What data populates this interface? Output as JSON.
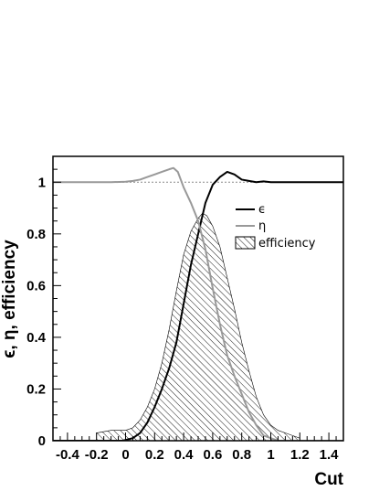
{
  "chart_data": {
    "type": "line",
    "title": "",
    "xlabel": "Cut",
    "ylabel": "ϵ, η, efficiency",
    "xlim": [
      -0.5,
      1.5
    ],
    "ylim": [
      0,
      1.1
    ],
    "x_ticks": [
      -0.4,
      -0.2,
      0,
      0.2,
      0.4,
      0.6,
      0.8,
      1,
      1.2,
      1.4
    ],
    "x_tick_labels": [
      "-0.4",
      "-0.2",
      "0",
      "0.2",
      "0.4",
      "0.6",
      "0.8",
      "1",
      "1.2",
      "1.4"
    ],
    "y_ticks": [
      0,
      0.2,
      0.4,
      0.6,
      0.8,
      1
    ],
    "y_tick_labels": [
      "0",
      "0.2",
      "0.4",
      "0.6",
      "0.8",
      "1"
    ],
    "reference_line": {
      "y": 1.0,
      "style": "dotted",
      "color": "#888888"
    },
    "legend_position": "upper-right",
    "series": [
      {
        "name": "ϵ",
        "kind": "line",
        "color": "#000000",
        "x": [
          -0.5,
          -0.02,
          0.05,
          0.1,
          0.15,
          0.2,
          0.25,
          0.3,
          0.35,
          0.4,
          0.45,
          0.5,
          0.55,
          0.6,
          0.65,
          0.7,
          0.75,
          0.8,
          0.85,
          0.9,
          0.95,
          1.0,
          1.05,
          1.5
        ],
        "y": [
          0,
          0,
          0.01,
          0.03,
          0.07,
          0.13,
          0.2,
          0.28,
          0.38,
          0.53,
          0.68,
          0.8,
          0.92,
          0.99,
          1.02,
          1.04,
          1.03,
          1.01,
          1.005,
          1.0,
          1.003,
          1.0,
          1.0,
          1.0
        ]
      },
      {
        "name": "η",
        "kind": "line",
        "color": "#999999",
        "x": [
          -0.5,
          -0.1,
          0.0,
          0.05,
          0.1,
          0.15,
          0.2,
          0.25,
          0.3,
          0.33,
          0.36,
          0.4,
          0.45,
          0.5,
          0.55,
          0.6,
          0.65,
          0.7,
          0.75,
          0.8,
          0.85,
          0.9,
          0.95,
          1.0,
          1.05,
          1.5
        ],
        "y": [
          1.0,
          1.0,
          1.002,
          1.005,
          1.01,
          1.02,
          1.03,
          1.04,
          1.05,
          1.055,
          1.04,
          0.98,
          0.92,
          0.85,
          0.74,
          0.59,
          0.45,
          0.33,
          0.25,
          0.18,
          0.11,
          0.06,
          0.02,
          0.01,
          0,
          0
        ]
      },
      {
        "name": "efficiency",
        "kind": "hatched-area",
        "color": "#000000",
        "x": [
          -0.2,
          -0.1,
          0.0,
          0.05,
          0.1,
          0.15,
          0.2,
          0.25,
          0.3,
          0.35,
          0.4,
          0.45,
          0.5,
          0.53,
          0.56,
          0.6,
          0.65,
          0.7,
          0.75,
          0.8,
          0.85,
          0.9,
          0.95,
          1.0,
          1.05,
          1.1,
          1.15,
          1.2
        ],
        "y": [
          0.03,
          0.04,
          0.04,
          0.05,
          0.08,
          0.13,
          0.2,
          0.3,
          0.43,
          0.58,
          0.72,
          0.81,
          0.86,
          0.88,
          0.87,
          0.83,
          0.75,
          0.63,
          0.51,
          0.38,
          0.27,
          0.17,
          0.1,
          0.06,
          0.04,
          0.03,
          0.02,
          0.01
        ]
      }
    ]
  }
}
